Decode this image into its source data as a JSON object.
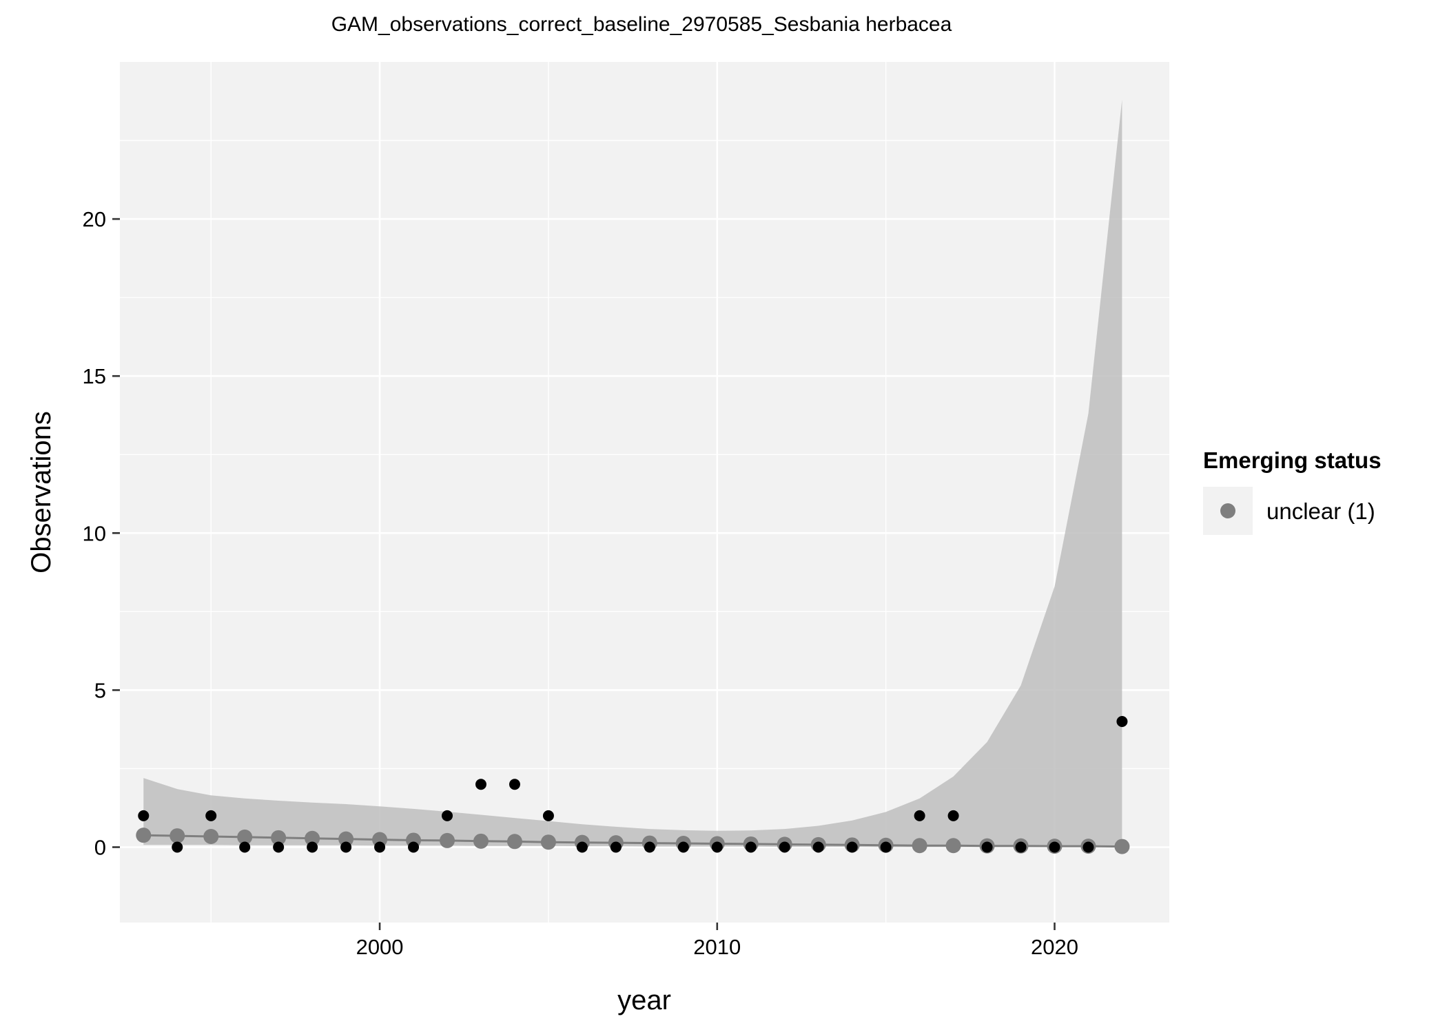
{
  "chart_data": {
    "type": "scatter",
    "title": "GAM_observations_correct_baseline_2970585_Sesbania herbacea",
    "xlabel": "year",
    "ylabel": "Observations",
    "xlim": [
      1992.3,
      2023.4
    ],
    "ylim": [
      -2.4,
      25.0
    ],
    "x_ticks": [
      2000,
      2010,
      2020
    ],
    "y_ticks": [
      0,
      5,
      10,
      15,
      20
    ],
    "grid": true,
    "legend": {
      "position": "right",
      "title": "Emerging status",
      "entries": [
        "unclear (1)"
      ]
    },
    "colors": {
      "panel": "#f2f2f2",
      "grid": "#ffffff",
      "observed_points": "#000000",
      "fitted_points": "#7f7f7f",
      "ribbon": "#bebebe"
    },
    "observed": {
      "x": [
        1993,
        1994,
        1995,
        1996,
        1997,
        1998,
        1999,
        2000,
        2001,
        2002,
        2003,
        2004,
        2005,
        2006,
        2007,
        2008,
        2009,
        2010,
        2011,
        2012,
        2013,
        2014,
        2015,
        2016,
        2017,
        2018,
        2019,
        2020,
        2021,
        2022
      ],
      "y": [
        1,
        0,
        1,
        0,
        0,
        0,
        0,
        0,
        0,
        1,
        2,
        2,
        1,
        0,
        0,
        0,
        0,
        0,
        0,
        0,
        0,
        0,
        0,
        1,
        1,
        0,
        0,
        0,
        0,
        4
      ]
    },
    "fitted": {
      "series_label": "unclear (1)",
      "x": [
        1993,
        1994,
        1995,
        1996,
        1997,
        1998,
        1999,
        2000,
        2001,
        2002,
        2003,
        2004,
        2005,
        2006,
        2007,
        2008,
        2009,
        2010,
        2011,
        2012,
        2013,
        2014,
        2015,
        2016,
        2017,
        2018,
        2019,
        2020,
        2021,
        2022
      ],
      "y": [
        0.38,
        0.36,
        0.34,
        0.32,
        0.3,
        0.28,
        0.26,
        0.24,
        0.22,
        0.21,
        0.19,
        0.18,
        0.16,
        0.15,
        0.14,
        0.13,
        0.12,
        0.11,
        0.1,
        0.09,
        0.08,
        0.07,
        0.06,
        0.05,
        0.05,
        0.04,
        0.04,
        0.03,
        0.03,
        0.02
      ],
      "lower": [
        0.07,
        0.07,
        0.07,
        0.06,
        0.06,
        0.06,
        0.06,
        0.05,
        0.05,
        0.05,
        0.04,
        0.04,
        0.04,
        0.03,
        0.03,
        0.02,
        0.02,
        0.02,
        0.02,
        0.01,
        0.01,
        0.01,
        0.0,
        0.0,
        0.0,
        0.0,
        0.0,
        0.0,
        0.0,
        0.0
      ],
      "upper": [
        2.2,
        1.85,
        1.65,
        1.55,
        1.48,
        1.42,
        1.37,
        1.3,
        1.22,
        1.13,
        1.03,
        0.93,
        0.83,
        0.73,
        0.65,
        0.58,
        0.54,
        0.52,
        0.53,
        0.58,
        0.68,
        0.85,
        1.12,
        1.55,
        2.25,
        3.35,
        5.15,
        8.3,
        13.8,
        23.8
      ]
    }
  }
}
